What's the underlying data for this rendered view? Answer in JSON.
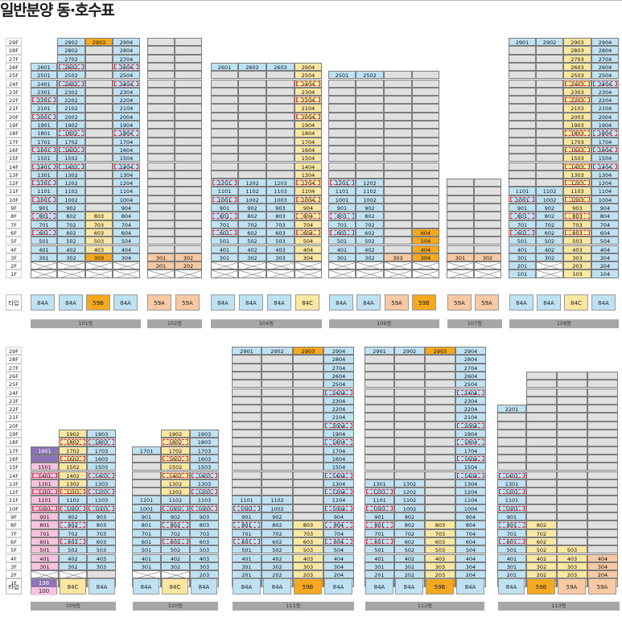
{
  "title": "일반분양 동·호수표",
  "type_label": "타입",
  "floor_labels": [
    "29F",
    "28F",
    "27F",
    "26F",
    "25F",
    "24F",
    "23F",
    "22F",
    "21F",
    "20F",
    "19F",
    "18F",
    "17F",
    "16F",
    "15F",
    "14F",
    "13F",
    "12F",
    "11F",
    "10F",
    "9F",
    "8F",
    "7F",
    "6F",
    "5F",
    "4F",
    "3F",
    "2F",
    "1F"
  ],
  "colors": {
    "blue": "#bfe2f3",
    "yellow": "#fbe7a1",
    "orange": "#f6a81e",
    "peach": "#f8c9a4",
    "pink": "#f7c3df",
    "purple": "#8c74b6",
    "grey": "#e0e0e0",
    "dash": "#d8263d",
    "dong_bar": "#a7a7a7"
  },
  "legend_note": "Cells with a dashed red outline are highlighted units.",
  "buildings": [
    {
      "dong": "101동",
      "types": [
        "84A",
        "84A",
        "59B",
        "84A"
      ]
    },
    {
      "dong": "102동",
      "types": [
        "59A",
        "59A"
      ]
    },
    {
      "dong": "104동",
      "types": [
        "84A",
        "84A",
        "84A",
        "84C"
      ]
    },
    {
      "dong": "106동",
      "types": [
        "84A",
        "84A",
        "59A",
        "59B"
      ]
    },
    {
      "dong": "107동",
      "types": [
        "59A",
        "59A"
      ]
    },
    {
      "dong": "108동",
      "types": [
        "84A",
        "84A",
        "84C",
        "84A"
      ]
    },
    {
      "dong": "109동",
      "types": [
        "136",
        "84C",
        "84A"
      ]
    },
    {
      "dong": "110동",
      "types": [
        "84A",
        "84C",
        "84A"
      ]
    },
    {
      "dong": "111동",
      "types": [
        "84A",
        "84A",
        "59B",
        "84A"
      ]
    },
    {
      "dong": "112동",
      "types": [
        "84A",
        "84A",
        "59B",
        "84A"
      ]
    },
    {
      "dong": "113동",
      "types": [
        "84A",
        "59B",
        "59A",
        "59A"
      ]
    }
  ],
  "extra_type_label": "100"
}
